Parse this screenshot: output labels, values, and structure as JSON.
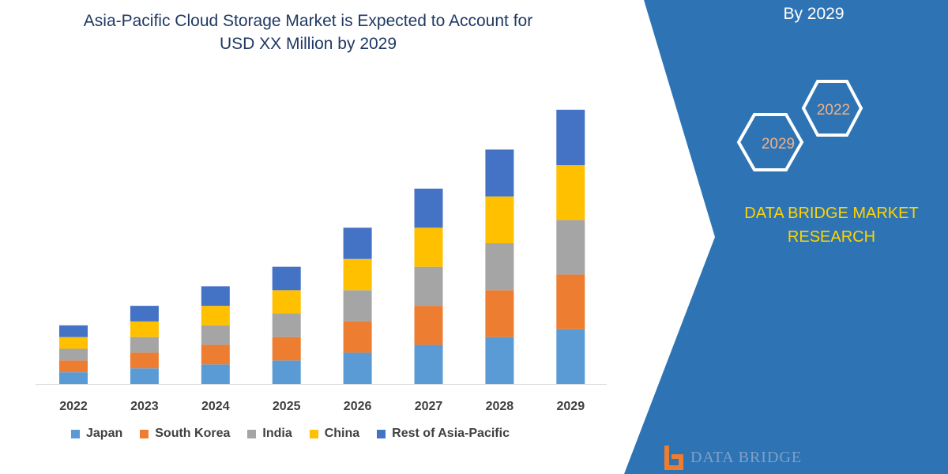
{
  "title_line1": "Asia-Pacific Cloud Storage Market is Expected to Account for",
  "title_line2": "USD XX Million by 2029",
  "side_panel": {
    "headline_visible": "By 2029",
    "hexagon_years": [
      "2022",
      "2029"
    ],
    "brand_line1": "DATA BRIDGE MARKET",
    "brand_line2": "RESEARCH",
    "logo_text": "DATA BRIDGE",
    "panel_color": "#2e74b5",
    "brand_color": "#ffd400"
  },
  "chart_data": {
    "type": "bar",
    "stacked": true,
    "categories": [
      "2022",
      "2023",
      "2024",
      "2025",
      "2026",
      "2027",
      "2028",
      "2029"
    ],
    "series": [
      {
        "name": "Japan",
        "color": "#5b9bd5",
        "values": [
          15,
          20,
          25,
          30,
          40,
          50,
          60,
          70
        ]
      },
      {
        "name": "South Korea",
        "color": "#ed7d31",
        "values": [
          15,
          20,
          25,
          30,
          40,
          50,
          60,
          70
        ]
      },
      {
        "name": "India",
        "color": "#a5a5a5",
        "values": [
          15,
          20,
          25,
          30,
          40,
          50,
          60,
          70
        ]
      },
      {
        "name": "China",
        "color": "#ffc000",
        "values": [
          15,
          20,
          25,
          30,
          40,
          50,
          60,
          70
        ]
      },
      {
        "name": "Rest of Asia-Pacific",
        "color": "#4472c4",
        "values": [
          15,
          20,
          25,
          30,
          40,
          50,
          60,
          71
        ]
      }
    ],
    "ylim": [
      0,
      360
    ],
    "grid": false,
    "y_axis_shown": false,
    "legend_position": "bottom"
  }
}
